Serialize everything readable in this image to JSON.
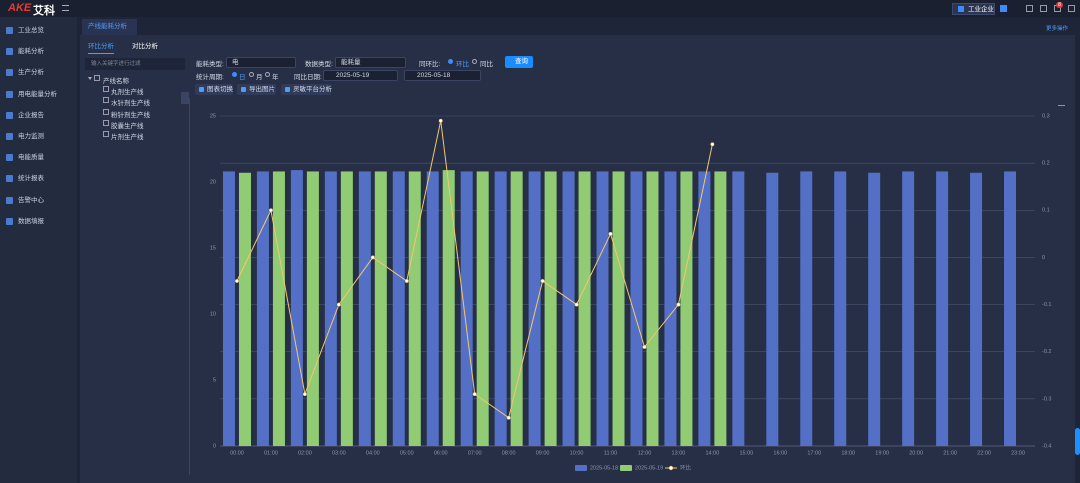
{
  "header": {
    "logo_brand": "AKE",
    "logo_name": "艾科",
    "enterprise": "工业企业",
    "badge": "8",
    "more": "更多操作"
  },
  "sidebar": [
    "工业总览",
    "能耗分析",
    "生产分析",
    "用电能量分析",
    "企业报告",
    "电力监测",
    "电能质量",
    "统计报表",
    "告警中心",
    "数据填报"
  ],
  "page_tab": "产线能耗分析",
  "sub_tabs": [
    "环比分析",
    "对比分析"
  ],
  "tree": {
    "placeholder": "输入关键字进行过滤",
    "root": "产线名称",
    "items": [
      "丸剂生产线",
      "水针剂生产线",
      "粉针剂生产线",
      "胶囊生产线",
      "片剂生产线"
    ]
  },
  "filters": {
    "energy_type_label": "能耗类型:",
    "energy_type": "电",
    "data_type_label": "数据类型:",
    "data_type": "能耗量",
    "compare_label": "同环比:",
    "compare_options": [
      "环比",
      "同比"
    ],
    "query": "查询",
    "period_label": "统计周期:",
    "period_options": [
      "日",
      "月",
      "年"
    ],
    "date_label": "同比日期:",
    "date_1": "2025-05-19",
    "date_2": "2025-05-18"
  },
  "toolbar": [
    "图表切换",
    "导出图片",
    "灵敏平台分析"
  ],
  "chart_data": {
    "type": "bar",
    "categories": [
      "00:00",
      "01:00",
      "02:00",
      "03:00",
      "04:00",
      "05:00",
      "06:00",
      "07:00",
      "08:00",
      "09:00",
      "10:00",
      "11:00",
      "12:00",
      "13:00",
      "14:00",
      "15:00",
      "16:00",
      "17:00",
      "18:00",
      "19:00",
      "20:00",
      "21:00",
      "22:00",
      "23:00"
    ],
    "series": [
      {
        "name": "2025-05-18",
        "color": "#5470c6",
        "values": [
          20.8,
          20.8,
          20.9,
          20.8,
          20.8,
          20.8,
          20.8,
          20.8,
          20.8,
          20.8,
          20.8,
          20.8,
          20.8,
          20.8,
          20.8,
          20.8,
          20.7,
          20.8,
          20.8,
          20.7,
          20.8,
          20.8,
          20.7,
          20.8
        ]
      },
      {
        "name": "2025-05-19",
        "color": "#91cc75",
        "values": [
          20.7,
          20.8,
          20.8,
          20.8,
          20.8,
          20.8,
          20.9,
          20.8,
          20.8,
          20.8,
          20.8,
          20.8,
          20.8,
          20.8,
          20.8,
          null,
          null,
          null,
          null,
          null,
          null,
          null,
          null,
          null
        ]
      },
      {
        "name": "环比",
        "type": "line",
        "axis": "y2",
        "color": "#f2c86b",
        "values": [
          -0.05,
          0.1,
          -0.29,
          -0.1,
          0,
          -0.05,
          0.29,
          -0.29,
          -0.34,
          -0.05,
          -0.1,
          0.05,
          -0.19,
          -0.1,
          0.24,
          null,
          null,
          null,
          null,
          null,
          null,
          null,
          null,
          null
        ]
      }
    ],
    "ylim": [
      0,
      25
    ],
    "yticks": [
      0,
      5,
      10,
      15,
      20,
      25
    ],
    "y2lim": [
      -0.4,
      0.3
    ],
    "y2ticks": [
      -0.4,
      -0.3,
      -0.2,
      -0.1,
      0,
      0.1,
      0.2,
      0.3
    ],
    "grid": true
  }
}
